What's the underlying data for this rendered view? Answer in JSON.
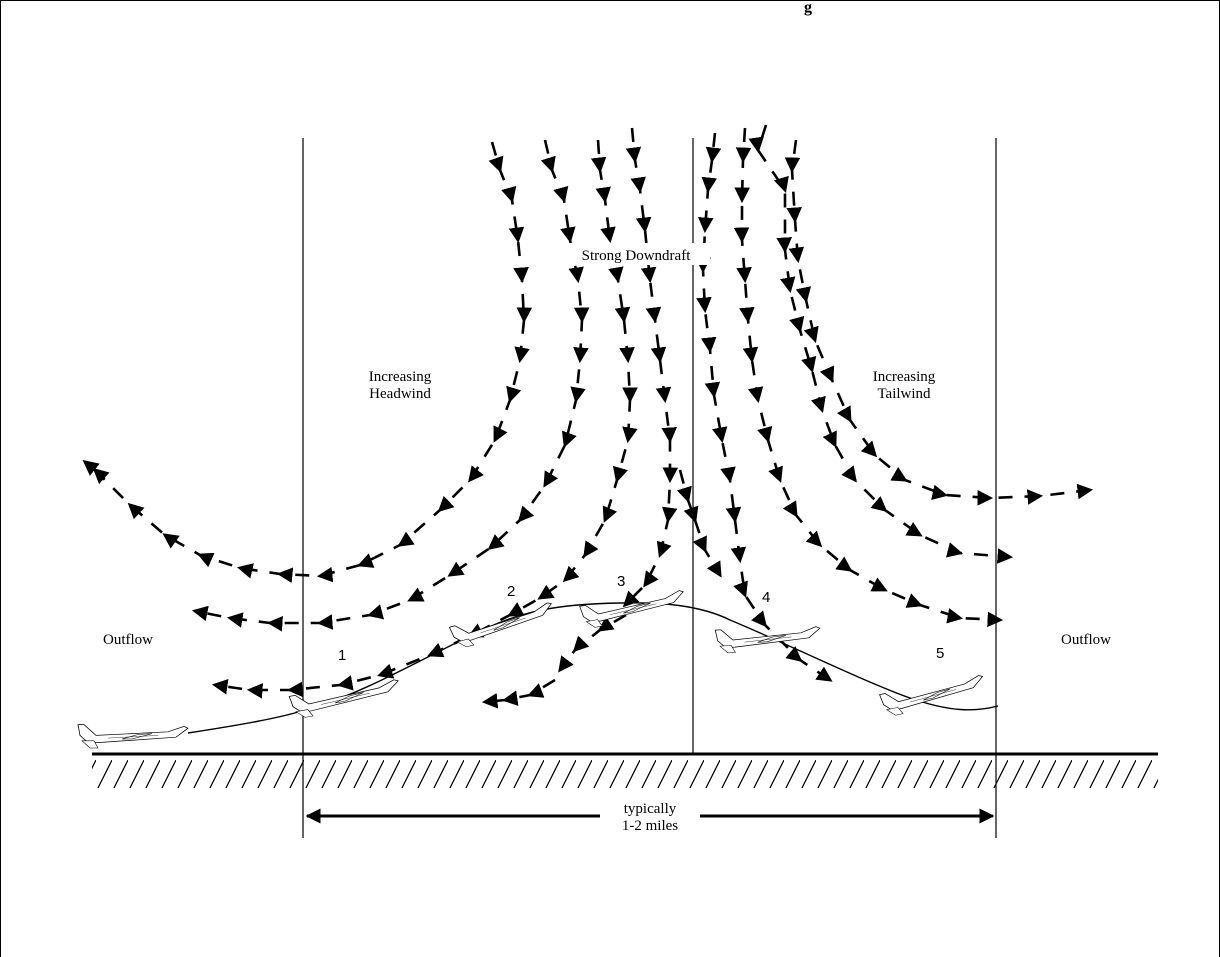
{
  "title_fragment": "g",
  "labels": {
    "strong_downdraft": "Strong Downdraft",
    "headwind_line1": "Increasing",
    "headwind_line2": "Headwind",
    "tailwind_line1": "Increasing",
    "tailwind_line2": "Tailwind",
    "outflow_left": "Outflow",
    "outflow_right": "Outflow",
    "distance_line1": "typically",
    "distance_line2": "1-2 miles"
  },
  "aircraft_positions": [
    "1",
    "2",
    "3",
    "4",
    "5"
  ],
  "colors": {
    "ink": "#000000",
    "background": "#ffffff"
  }
}
